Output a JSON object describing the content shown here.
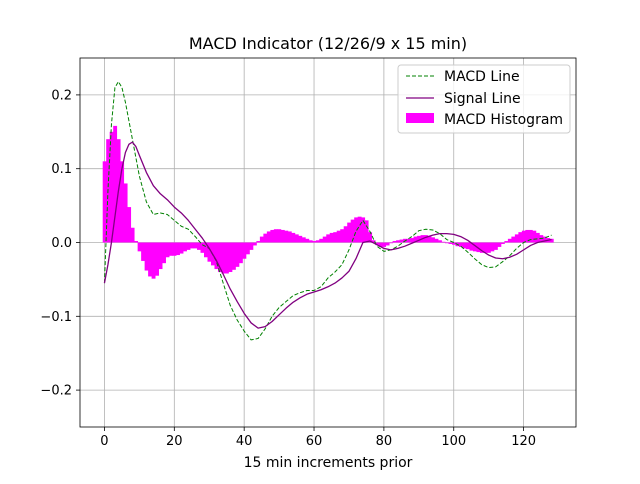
{
  "chart_data": {
    "type": "line",
    "title": "MACD Indicator (12/26/9 x 15 min)",
    "xlabel": "15 min increments prior",
    "ylabel": "",
    "xlim": [
      -7,
      135
    ],
    "ylim": [
      -0.25,
      0.25
    ],
    "xticks": [
      0,
      20,
      40,
      60,
      80,
      100,
      120
    ],
    "xtick_labels": [
      "0",
      "20",
      "40",
      "60",
      "80",
      "100",
      "120"
    ],
    "yticks": [
      0.2,
      0.1,
      0.0,
      -0.1,
      -0.2
    ],
    "ytick_labels": [
      "0.2",
      "0.1",
      "0.0",
      "−0.1",
      "−0.2"
    ],
    "grid": true,
    "legend_position": "top-right",
    "legend": [
      {
        "label": "MACD Line",
        "style": "dashed-line",
        "color": "#008000"
      },
      {
        "label": "Signal Line",
        "style": "solid-line",
        "color": "#800080"
      },
      {
        "label": "MACD Histogram",
        "style": "bar",
        "color": "#ff00ff"
      }
    ],
    "series": [
      {
        "name": "MACD Line",
        "type": "line",
        "color": "#008000",
        "dashed": true,
        "points": [
          [
            0,
            -0.055
          ],
          [
            1,
            0.07
          ],
          [
            2,
            0.16
          ],
          [
            3,
            0.21
          ],
          [
            4,
            0.218
          ],
          [
            5,
            0.21
          ],
          [
            6,
            0.19
          ],
          [
            8,
            0.14
          ],
          [
            10,
            0.09
          ],
          [
            12,
            0.055
          ],
          [
            14,
            0.038
          ],
          [
            16,
            0.04
          ],
          [
            18,
            0.038
          ],
          [
            20,
            0.03
          ],
          [
            22,
            0.022
          ],
          [
            24,
            0.018
          ],
          [
            26,
            0.008
          ],
          [
            28,
            -0.003
          ],
          [
            30,
            -0.008
          ],
          [
            32,
            -0.025
          ],
          [
            34,
            -0.055
          ],
          [
            36,
            -0.085
          ],
          [
            38,
            -0.105
          ],
          [
            40,
            -0.12
          ],
          [
            42,
            -0.132
          ],
          [
            44,
            -0.13
          ],
          [
            46,
            -0.117
          ],
          [
            48,
            -0.1
          ],
          [
            50,
            -0.088
          ],
          [
            52,
            -0.08
          ],
          [
            54,
            -0.072
          ],
          [
            56,
            -0.068
          ],
          [
            58,
            -0.065
          ],
          [
            60,
            -0.065
          ],
          [
            62,
            -0.06
          ],
          [
            64,
            -0.048
          ],
          [
            66,
            -0.04
          ],
          [
            68,
            -0.03
          ],
          [
            70,
            -0.01
          ],
          [
            72,
            0.015
          ],
          [
            74,
            0.03
          ],
          [
            76,
            0.015
          ],
          [
            78,
            -0.005
          ],
          [
            80,
            -0.012
          ],
          [
            82,
            -0.01
          ],
          [
            84,
            -0.005
          ],
          [
            86,
            0.002
          ],
          [
            88,
            0.008
          ],
          [
            90,
            0.016
          ],
          [
            92,
            0.018
          ],
          [
            94,
            0.017
          ],
          [
            96,
            0.012
          ],
          [
            98,
            0.004
          ],
          [
            100,
            0.0
          ],
          [
            102,
            -0.005
          ],
          [
            104,
            -0.013
          ],
          [
            106,
            -0.022
          ],
          [
            108,
            -0.03
          ],
          [
            110,
            -0.034
          ],
          [
            112,
            -0.033
          ],
          [
            114,
            -0.026
          ],
          [
            116,
            -0.018
          ],
          [
            118,
            -0.008
          ],
          [
            120,
            0.0
          ],
          [
            122,
            0.004
          ],
          [
            124,
            0.005
          ],
          [
            126,
            0.006
          ],
          [
            128,
            0.01
          ]
        ]
      },
      {
        "name": "Signal Line",
        "type": "line",
        "color": "#800080",
        "dashed": false,
        "points": [
          [
            0,
            -0.055
          ],
          [
            1,
            -0.03
          ],
          [
            2,
            0.0
          ],
          [
            3,
            0.035
          ],
          [
            4,
            0.07
          ],
          [
            5,
            0.1
          ],
          [
            6,
            0.122
          ],
          [
            7,
            0.133
          ],
          [
            8,
            0.136
          ],
          [
            9,
            0.13
          ],
          [
            10,
            0.118
          ],
          [
            12,
            0.095
          ],
          [
            14,
            0.077
          ],
          [
            16,
            0.066
          ],
          [
            18,
            0.058
          ],
          [
            20,
            0.048
          ],
          [
            22,
            0.04
          ],
          [
            24,
            0.03
          ],
          [
            26,
            0.018
          ],
          [
            28,
            0.006
          ],
          [
            30,
            -0.008
          ],
          [
            32,
            -0.024
          ],
          [
            34,
            -0.043
          ],
          [
            36,
            -0.063
          ],
          [
            38,
            -0.08
          ],
          [
            40,
            -0.096
          ],
          [
            42,
            -0.109
          ],
          [
            44,
            -0.116
          ],
          [
            46,
            -0.114
          ],
          [
            48,
            -0.107
          ],
          [
            50,
            -0.098
          ],
          [
            52,
            -0.089
          ],
          [
            54,
            -0.081
          ],
          [
            56,
            -0.075
          ],
          [
            58,
            -0.07
          ],
          [
            60,
            -0.067
          ],
          [
            62,
            -0.064
          ],
          [
            64,
            -0.06
          ],
          [
            66,
            -0.055
          ],
          [
            68,
            -0.048
          ],
          [
            70,
            -0.039
          ],
          [
            72,
            -0.022
          ],
          [
            74,
            0.0
          ],
          [
            76,
            0.002
          ],
          [
            78,
            -0.003
          ],
          [
            80,
            -0.008
          ],
          [
            82,
            -0.01
          ],
          [
            84,
            -0.008
          ],
          [
            86,
            -0.005
          ],
          [
            88,
            -0.001
          ],
          [
            90,
            0.003
          ],
          [
            92,
            0.007
          ],
          [
            94,
            0.01
          ],
          [
            96,
            0.012
          ],
          [
            98,
            0.012
          ],
          [
            100,
            0.011
          ],
          [
            102,
            0.008
          ],
          [
            104,
            0.003
          ],
          [
            106,
            -0.004
          ],
          [
            108,
            -0.011
          ],
          [
            110,
            -0.017
          ],
          [
            112,
            -0.021
          ],
          [
            114,
            -0.022
          ],
          [
            116,
            -0.02
          ],
          [
            118,
            -0.016
          ],
          [
            120,
            -0.01
          ],
          [
            122,
            -0.004
          ],
          [
            124,
            0.0
          ],
          [
            126,
            0.002
          ],
          [
            128,
            0.004
          ]
        ]
      },
      {
        "name": "MACD Histogram",
        "type": "bar",
        "color": "#ff00ff",
        "bar_width": 1,
        "points": [
          [
            0,
            0.11
          ],
          [
            1,
            0.14
          ],
          [
            2,
            0.15
          ],
          [
            3,
            0.158
          ],
          [
            4,
            0.14
          ],
          [
            5,
            0.11
          ],
          [
            6,
            0.08
          ],
          [
            7,
            0.048
          ],
          [
            8,
            0.02
          ],
          [
            9,
            0.002
          ],
          [
            10,
            -0.012
          ],
          [
            11,
            -0.025
          ],
          [
            12,
            -0.038
          ],
          [
            13,
            -0.046
          ],
          [
            14,
            -0.049
          ],
          [
            15,
            -0.045
          ],
          [
            16,
            -0.036
          ],
          [
            17,
            -0.028
          ],
          [
            18,
            -0.02
          ],
          [
            19,
            -0.018
          ],
          [
            20,
            -0.018
          ],
          [
            21,
            -0.017
          ],
          [
            22,
            -0.015
          ],
          [
            23,
            -0.012
          ],
          [
            24,
            -0.01
          ],
          [
            25,
            -0.008
          ],
          [
            26,
            -0.008
          ],
          [
            27,
            -0.01
          ],
          [
            28,
            -0.014
          ],
          [
            29,
            -0.02
          ],
          [
            30,
            -0.026
          ],
          [
            31,
            -0.031
          ],
          [
            32,
            -0.036
          ],
          [
            33,
            -0.04
          ],
          [
            34,
            -0.042
          ],
          [
            35,
            -0.042
          ],
          [
            36,
            -0.04
          ],
          [
            37,
            -0.037
          ],
          [
            38,
            -0.033
          ],
          [
            39,
            -0.028
          ],
          [
            40,
            -0.022
          ],
          [
            41,
            -0.016
          ],
          [
            42,
            -0.01
          ],
          [
            43,
            -0.004
          ],
          [
            44,
            0.002
          ],
          [
            45,
            0.008
          ],
          [
            46,
            0.012
          ],
          [
            47,
            0.015
          ],
          [
            48,
            0.017
          ],
          [
            49,
            0.018
          ],
          [
            50,
            0.018
          ],
          [
            51,
            0.017
          ],
          [
            52,
            0.016
          ],
          [
            53,
            0.015
          ],
          [
            54,
            0.013
          ],
          [
            55,
            0.011
          ],
          [
            56,
            0.009
          ],
          [
            57,
            0.007
          ],
          [
            58,
            0.005
          ],
          [
            59,
            0.003
          ],
          [
            60,
            0.002
          ],
          [
            61,
            0.003
          ],
          [
            62,
            0.005
          ],
          [
            63,
            0.008
          ],
          [
            64,
            0.011
          ],
          [
            65,
            0.013
          ],
          [
            66,
            0.014
          ],
          [
            67,
            0.016
          ],
          [
            68,
            0.018
          ],
          [
            69,
            0.022
          ],
          [
            70,
            0.027
          ],
          [
            71,
            0.031
          ],
          [
            72,
            0.034
          ],
          [
            73,
            0.035
          ],
          [
            74,
            0.034
          ],
          [
            75,
            0.03
          ],
          [
            76,
            0.014
          ],
          [
            77,
            0.003
          ],
          [
            78,
            -0.003
          ],
          [
            79,
            -0.006
          ],
          [
            80,
            -0.006
          ],
          [
            81,
            -0.004
          ],
          [
            82,
            -0.001
          ],
          [
            83,
            0.002
          ],
          [
            84,
            0.003
          ],
          [
            85,
            0.004
          ],
          [
            86,
            0.005
          ],
          [
            87,
            0.005
          ],
          [
            88,
            0.006
          ],
          [
            89,
            0.008
          ],
          [
            90,
            0.009
          ],
          [
            91,
            0.01
          ],
          [
            92,
            0.01
          ],
          [
            93,
            0.009
          ],
          [
            94,
            0.007
          ],
          [
            95,
            0.005
          ],
          [
            96,
            0.003
          ],
          [
            97,
            0.001
          ],
          [
            98,
            -0.001
          ],
          [
            99,
            -0.002
          ],
          [
            100,
            -0.003
          ],
          [
            101,
            -0.005
          ],
          [
            102,
            -0.006
          ],
          [
            103,
            -0.008
          ],
          [
            104,
            -0.009
          ],
          [
            105,
            -0.011
          ],
          [
            106,
            -0.012
          ],
          [
            107,
            -0.013
          ],
          [
            108,
            -0.014
          ],
          [
            109,
            -0.014
          ],
          [
            110,
            -0.014
          ],
          [
            111,
            -0.012
          ],
          [
            112,
            -0.01
          ],
          [
            113,
            -0.006
          ],
          [
            114,
            -0.002
          ],
          [
            115,
            0.002
          ],
          [
            116,
            0.005
          ],
          [
            117,
            0.008
          ],
          [
            118,
            0.011
          ],
          [
            119,
            0.014
          ],
          [
            120,
            0.016
          ],
          [
            121,
            0.017
          ],
          [
            122,
            0.017
          ],
          [
            123,
            0.016
          ],
          [
            124,
            0.013
          ],
          [
            125,
            0.01
          ],
          [
            126,
            0.008
          ],
          [
            127,
            0.006
          ],
          [
            128,
            0.005
          ]
        ]
      }
    ]
  }
}
